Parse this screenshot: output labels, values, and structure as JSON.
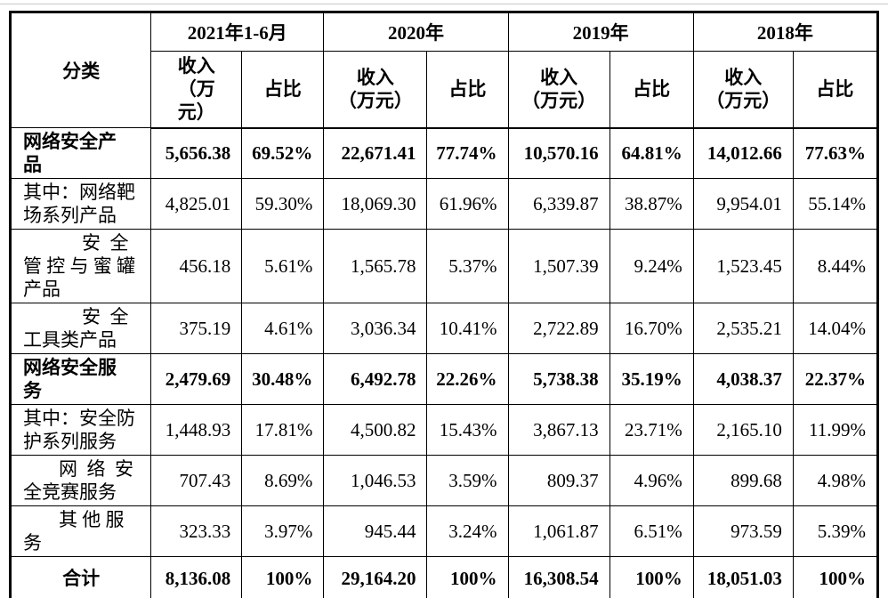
{
  "colors": {
    "text": "#000000",
    "border": "#000000",
    "background": "#ffffff",
    "rule": "#c8c8c8"
  },
  "table": {
    "category_header": "分类",
    "col_groups": [
      {
        "year": "2021年1-6月",
        "income_label": "收入\n（万\n元）",
        "ratio_label": "占比"
      },
      {
        "year": "2020年",
        "income_label": "收入\n（万元）",
        "ratio_label": "占比"
      },
      {
        "year": "2019年",
        "income_label": "收入\n（万元）",
        "ratio_label": "占比"
      },
      {
        "year": "2018年",
        "income_label": "收入\n（万元）",
        "ratio_label": "占比"
      }
    ],
    "rows": [
      {
        "label": "网络安全产\n品",
        "bold": true,
        "values": [
          "5,656.38",
          "69.52%",
          "22,671.41",
          "77.74%",
          "10,570.16",
          "64.81%",
          "14,012.66",
          "77.63%"
        ]
      },
      {
        "label": "其中：网络靶\n场系列产品",
        "values": [
          "4,825.01",
          "59.30%",
          "18,069.30",
          "61.96%",
          "6,339.87",
          "38.87%",
          "9,954.01",
          "55.14%"
        ]
      },
      {
        "label": "安 全\n管 控 与 蜜 罐\n产品",
        "indent": 3,
        "values": [
          "456.18",
          "5.61%",
          "1,565.78",
          "5.37%",
          "1,507.39",
          "9.24%",
          "1,523.45",
          "8.44%"
        ]
      },
      {
        "label": "安 全\n工具类产品",
        "indent": 3,
        "values": [
          "375.19",
          "4.61%",
          "3,036.34",
          "10.41%",
          "2,722.89",
          "16.70%",
          "2,535.21",
          "14.04%"
        ]
      },
      {
        "label": "网络安全服\n务",
        "bold": true,
        "values": [
          "2,479.69",
          "30.48%",
          "6,492.78",
          "22.26%",
          "5,738.38",
          "35.19%",
          "4,038.37",
          "22.37%"
        ]
      },
      {
        "label": "其中：安全防\n护系列服务",
        "values": [
          "1,448.93",
          "17.81%",
          "4,500.82",
          "15.43%",
          "3,867.13",
          "23.71%",
          "2,165.10",
          "11.99%"
        ]
      },
      {
        "label": "网 络 安\n全竞赛服务",
        "indent": 2,
        "values": [
          "707.43",
          "8.69%",
          "1,046.53",
          "3.59%",
          "809.37",
          "4.96%",
          "899.68",
          "4.98%"
        ]
      },
      {
        "label": "其 他 服\n务",
        "indent": 2,
        "values": [
          "323.33",
          "3.97%",
          "945.44",
          "3.24%",
          "1,061.87",
          "6.51%",
          "973.59",
          "5.39%"
        ]
      },
      {
        "label": "合计",
        "bold": true,
        "center": true,
        "values": [
          "8,136.08",
          "100%",
          "29,164.20",
          "100%",
          "16,308.54",
          "100%",
          "18,051.03",
          "100%"
        ]
      }
    ]
  }
}
